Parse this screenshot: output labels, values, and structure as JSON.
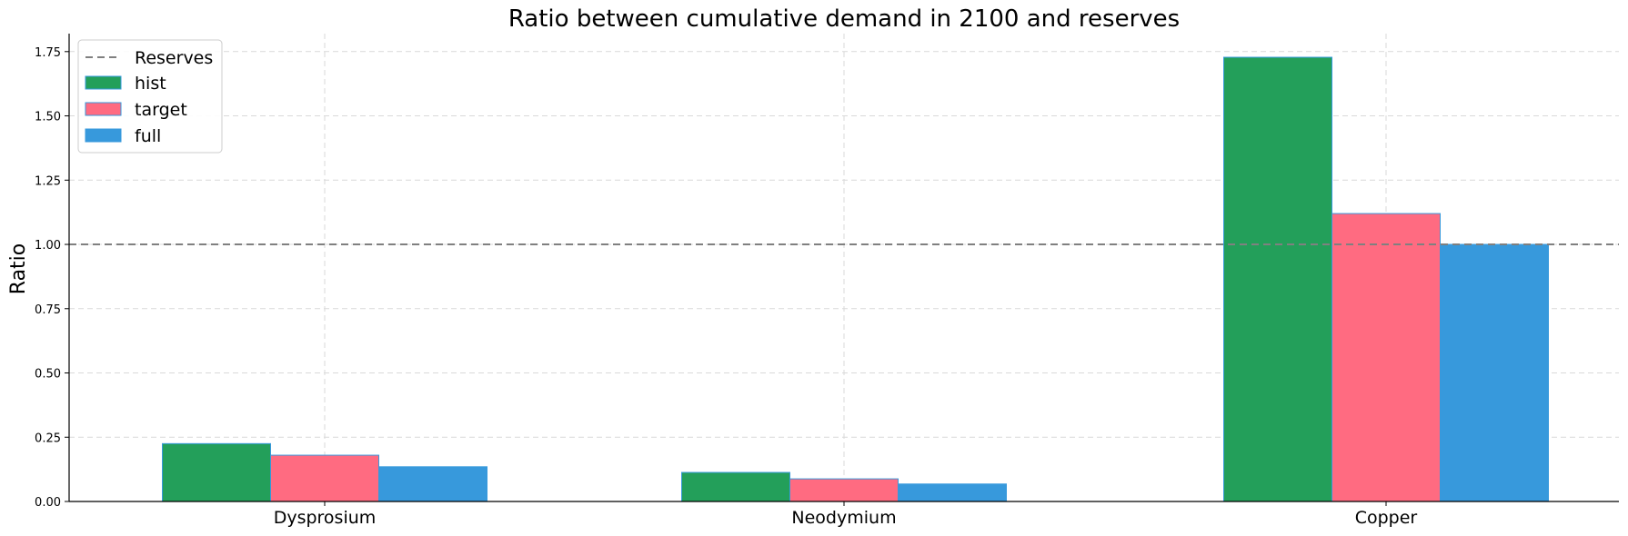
{
  "chart_data": {
    "type": "bar",
    "title": "Ratio between cumulative demand in 2100 and reserves",
    "xlabel": "",
    "ylabel": "Ratio",
    "categories": [
      "Dysprosium",
      "Neodymium",
      "Copper"
    ],
    "series": [
      {
        "name": "hist",
        "values": [
          0.225,
          0.113,
          1.728
        ],
        "color": "#239f5a"
      },
      {
        "name": "target",
        "values": [
          0.18,
          0.088,
          1.12
        ],
        "color": "#ff6b81"
      },
      {
        "name": "full",
        "values": [
          0.135,
          0.068,
          1.0
        ],
        "color": "#3799dc"
      }
    ],
    "reference_line": {
      "name": "Reserves",
      "value": 1.0,
      "color": "#808080",
      "style": "dashed"
    },
    "ylim": [
      0,
      1.82
    ],
    "yticks": [
      "0.00",
      "0.25",
      "0.50",
      "0.75",
      "1.00",
      "1.25",
      "1.50",
      "1.75"
    ],
    "grid": true,
    "legend_position": "top-left",
    "bar_edge_color": "#3799dc"
  }
}
